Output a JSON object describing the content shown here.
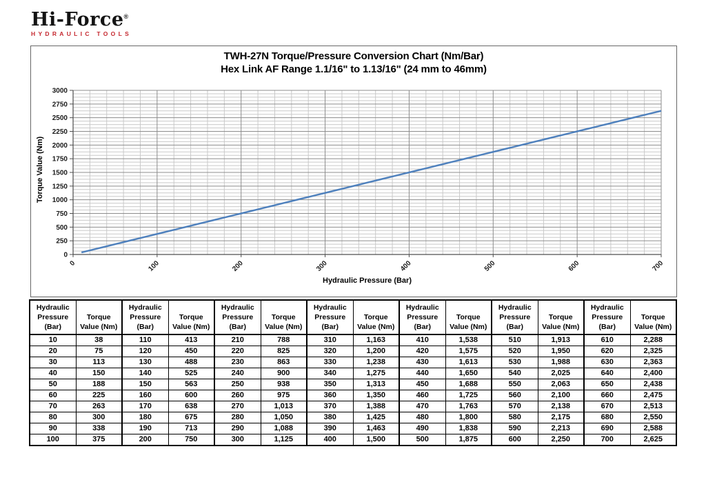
{
  "logo": {
    "brand": "Hi-Force",
    "registered_mark": "®",
    "tagline": "HYDRAULIC TOOLS",
    "tagline_color": "#C5282F"
  },
  "chart_data": {
    "type": "line",
    "title": "TWH-27N Torque/Pressure Conversion Chart (Nm/Bar)",
    "subtitle": "Hex Link AF Range 1.1/16\" to 1.13/16\" (24 mm to 46mm)",
    "xlabel": "Hydraulic Pressure (Bar)",
    "ylabel": "Torque Value (Nm)",
    "xlim": [
      0,
      700
    ],
    "ylim": [
      0,
      3000
    ],
    "x_ticks": [
      0,
      100,
      200,
      300,
      400,
      500,
      600,
      700
    ],
    "y_ticks": [
      0,
      250,
      500,
      750,
      1000,
      1250,
      1500,
      1750,
      2000,
      2250,
      2500,
      2750,
      3000
    ],
    "x_minor_step": 20,
    "y_minor_step": 62.5,
    "grid": true,
    "legend": "none",
    "line_color": "#4F81BD",
    "series": [
      {
        "x": [
          10,
          20,
          30,
          40,
          50,
          60,
          70,
          80,
          90,
          100,
          110,
          120,
          130,
          140,
          150,
          160,
          170,
          180,
          190,
          200,
          210,
          220,
          230,
          240,
          250,
          260,
          270,
          280,
          290,
          300,
          310,
          320,
          330,
          340,
          350,
          360,
          370,
          380,
          390,
          400,
          410,
          420,
          430,
          440,
          450,
          460,
          470,
          480,
          490,
          500,
          510,
          520,
          530,
          540,
          550,
          560,
          570,
          580,
          590,
          600,
          610,
          620,
          630,
          640,
          650,
          660,
          670,
          680,
          690,
          700
        ],
        "y": [
          38,
          75,
          113,
          150,
          188,
          225,
          263,
          300,
          338,
          375,
          413,
          450,
          488,
          525,
          563,
          600,
          638,
          675,
          713,
          750,
          788,
          825,
          863,
          900,
          938,
          975,
          1013,
          1050,
          1088,
          1125,
          1163,
          1200,
          1238,
          1275,
          1313,
          1350,
          1388,
          1425,
          1463,
          1500,
          1538,
          1575,
          1613,
          1650,
          1688,
          1725,
          1763,
          1800,
          1838,
          1875,
          1913,
          1950,
          1988,
          2025,
          2063,
          2100,
          2138,
          2175,
          2213,
          2250,
          2288,
          2325,
          2363,
          2400,
          2438,
          2475,
          2513,
          2550,
          2588,
          2625
        ]
      }
    ]
  },
  "table": {
    "pressure_header_lines": [
      "Hydraulic",
      "Pressure",
      "(Bar)"
    ],
    "torque_header_lines": [
      "Torque",
      "Value (Nm)"
    ],
    "groups": [
      {
        "rows": [
          [
            "10",
            "38"
          ],
          [
            "20",
            "75"
          ],
          [
            "30",
            "113"
          ],
          [
            "40",
            "150"
          ],
          [
            "50",
            "188"
          ],
          [
            "60",
            "225"
          ],
          [
            "70",
            "263"
          ],
          [
            "80",
            "300"
          ],
          [
            "90",
            "338"
          ],
          [
            "100",
            "375"
          ]
        ]
      },
      {
        "rows": [
          [
            "110",
            "413"
          ],
          [
            "120",
            "450"
          ],
          [
            "130",
            "488"
          ],
          [
            "140",
            "525"
          ],
          [
            "150",
            "563"
          ],
          [
            "160",
            "600"
          ],
          [
            "170",
            "638"
          ],
          [
            "180",
            "675"
          ],
          [
            "190",
            "713"
          ],
          [
            "200",
            "750"
          ]
        ]
      },
      {
        "rows": [
          [
            "210",
            "788"
          ],
          [
            "220",
            "825"
          ],
          [
            "230",
            "863"
          ],
          [
            "240",
            "900"
          ],
          [
            "250",
            "938"
          ],
          [
            "260",
            "975"
          ],
          [
            "270",
            "1,013"
          ],
          [
            "280",
            "1,050"
          ],
          [
            "290",
            "1,088"
          ],
          [
            "300",
            "1,125"
          ]
        ]
      },
      {
        "rows": [
          [
            "310",
            "1,163"
          ],
          [
            "320",
            "1,200"
          ],
          [
            "330",
            "1,238"
          ],
          [
            "340",
            "1,275"
          ],
          [
            "350",
            "1,313"
          ],
          [
            "360",
            "1,350"
          ],
          [
            "370",
            "1,388"
          ],
          [
            "380",
            "1,425"
          ],
          [
            "390",
            "1,463"
          ],
          [
            "400",
            "1,500"
          ]
        ]
      },
      {
        "rows": [
          [
            "410",
            "1,538"
          ],
          [
            "420",
            "1,575"
          ],
          [
            "430",
            "1,613"
          ],
          [
            "440",
            "1,650"
          ],
          [
            "450",
            "1,688"
          ],
          [
            "460",
            "1,725"
          ],
          [
            "470",
            "1,763"
          ],
          [
            "480",
            "1,800"
          ],
          [
            "490",
            "1,838"
          ],
          [
            "500",
            "1,875"
          ]
        ]
      },
      {
        "rows": [
          [
            "510",
            "1,913"
          ],
          [
            "520",
            "1,950"
          ],
          [
            "530",
            "1,988"
          ],
          [
            "540",
            "2,025"
          ],
          [
            "550",
            "2,063"
          ],
          [
            "560",
            "2,100"
          ],
          [
            "570",
            "2,138"
          ],
          [
            "580",
            "2,175"
          ],
          [
            "590",
            "2,213"
          ],
          [
            "600",
            "2,250"
          ]
        ]
      },
      {
        "rows": [
          [
            "610",
            "2,288"
          ],
          [
            "620",
            "2,325"
          ],
          [
            "630",
            "2,363"
          ],
          [
            "640",
            "2,400"
          ],
          [
            "650",
            "2,438"
          ],
          [
            "660",
            "2,475"
          ],
          [
            "670",
            "2,513"
          ],
          [
            "680",
            "2,550"
          ],
          [
            "690",
            "2,588"
          ],
          [
            "700",
            "2,625"
          ]
        ]
      }
    ]
  },
  "colors": {
    "grid_minor": "#C9C9C9",
    "grid_major": "#8C8C8C",
    "axis": "#4D4D4D"
  }
}
